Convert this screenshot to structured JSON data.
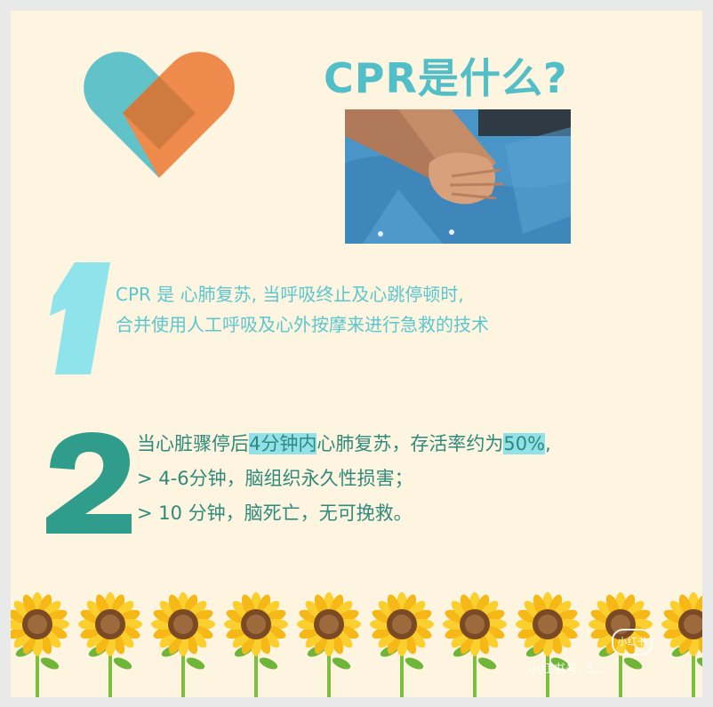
{
  "poster": {
    "title": "CPR是什么?",
    "section1": {
      "number": "1",
      "lines": [
        "CPR 是 心肺复苏, 当呼吸终止及心跳停顿时,",
        "合并使用人工呼吸及心外按摩来进行急救的技术"
      ]
    },
    "section2": {
      "number": "2",
      "line1_pre": "当心脏骤停后",
      "line1_hl1": "4分钟内",
      "line1_mid": "心肺复苏，存活率约为",
      "line1_hl2": "50%",
      "line1_post": ",",
      "line2": "> 4-6分钟，脑组织永久性损害；",
      "line3": "> 10 分钟，脑死亡，无可挽救。"
    },
    "watermark": {
      "logo": "小红书",
      "text": "小红书号: 5..."
    }
  },
  "colors": {
    "background": "#fdf5df",
    "title": "#52bfc8",
    "section1_text": "#5cc6d0",
    "section2_text": "#2f8a7d",
    "highlight": "#92e1e8",
    "heart_teal": "#62c2c9",
    "heart_orange": "#ee8a4b",
    "heart_overlap": "#cf7a3f",
    "number_one": "#8fe3ea",
    "number_two": "#2f9c8c"
  }
}
